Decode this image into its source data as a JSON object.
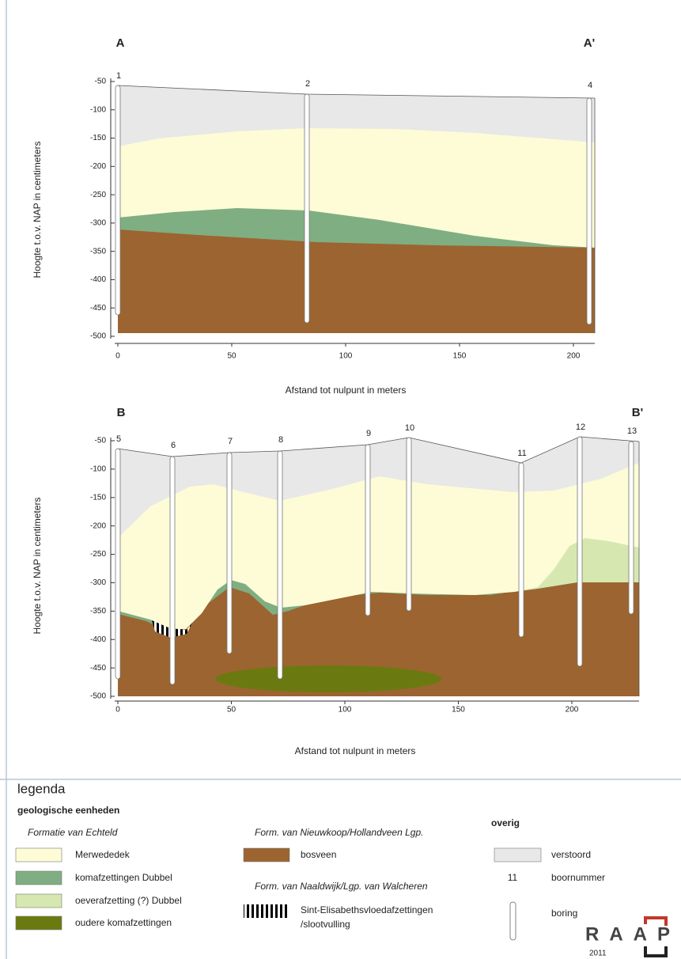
{
  "sections": [
    {
      "start_label": "A",
      "end_label": "A'",
      "y_axis_label": "Hoogte t.o.v. NAP in centimeters",
      "x_axis_label": "Afstand tot nulpunt in meters",
      "yticks": [
        -50,
        -100,
        -150,
        -200,
        -250,
        -300,
        -350,
        -400,
        -450,
        -500
      ],
      "xticks": [
        0,
        50,
        100,
        150,
        200
      ],
      "borings": [
        1,
        2,
        4
      ]
    },
    {
      "start_label": "B",
      "end_label": "B'",
      "y_axis_label": "Hoogte t.o.v. NAP in centimeters",
      "x_axis_label": "Afstand tot nulpunt in meters",
      "yticks": [
        -50,
        -100,
        -150,
        -200,
        -250,
        -300,
        -350,
        -400,
        -450,
        -500
      ],
      "xticks": [
        0,
        50,
        100,
        150,
        200
      ],
      "borings": [
        5,
        6,
        7,
        8,
        9,
        10,
        11,
        12,
        13
      ]
    }
  ],
  "legend": {
    "title": "legenda",
    "subtitle": "geologische eenheden",
    "echteld": {
      "heading": "Formatie van Echteld",
      "items": [
        "Merwededek",
        "komafzettingen Dubbel",
        "oeverafzetting (?) Dubbel",
        "oudere komafzettingen"
      ]
    },
    "nieuwkoop": {
      "heading": "Form. van Nieuwkoop/Hollandveen Lgp.",
      "item": "bosveen"
    },
    "naaldwijk": {
      "heading": "Form. van Naaldwijk/Lgp. van Walcheren",
      "item_line1": "Sint-Elisabethsvloedafzettingen",
      "item_line2": "/slootvulling"
    },
    "overig": {
      "heading": "overig",
      "verstoord": "verstoord",
      "example_number": 11,
      "boornummer": "boornummer",
      "boring": "boring"
    }
  },
  "logo": {
    "text": "RAAP",
    "year": 2011
  }
}
